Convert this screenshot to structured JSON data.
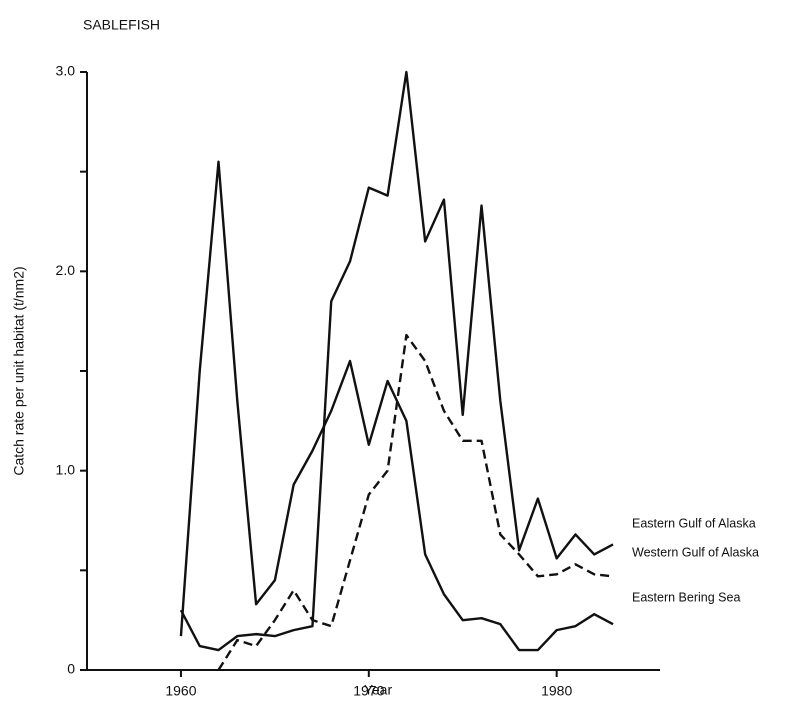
{
  "chart_data": {
    "type": "line",
    "title": "SABLEFISH",
    "x_label": "Year",
    "y_label": "Catch rate per unit habitat  (t/nm2)",
    "x": [
      1960,
      1961,
      1962,
      1963,
      1964,
      1965,
      1966,
      1967,
      1968,
      1969,
      1970,
      1971,
      1972,
      1973,
      1974,
      1975,
      1976,
      1977,
      1978,
      1979,
      1980,
      1981,
      1982,
      1983
    ],
    "series": [
      {
        "name": "Eastern Gulf of Alaska",
        "color": "#111111",
        "dash": false,
        "values": [
          0.3,
          0.12,
          0.1,
          0.17,
          0.18,
          0.17,
          0.2,
          0.22,
          1.85,
          2.05,
          2.42,
          2.38,
          3.0,
          2.15,
          2.36,
          1.28,
          2.33,
          1.35,
          0.6,
          0.86,
          0.56,
          0.68,
          0.58,
          0.63
        ]
      },
      {
        "name": "Western Gulf of Alaska",
        "color": "#111111",
        "dash": true,
        "values": [
          null,
          null,
          0,
          0.15,
          0.12,
          0.25,
          0.4,
          0.25,
          0.22,
          0.55,
          0.88,
          1.0,
          1.68,
          1.55,
          1.3,
          1.15,
          1.15,
          0.68,
          0.58,
          0.47,
          0.48,
          0.53,
          0.48,
          0.47
        ]
      },
      {
        "name": "Eastern Bering Sea",
        "color": "#111111",
        "dash": false,
        "values": [
          0.17,
          1.5,
          2.55,
          1.35,
          0.33,
          0.45,
          0.93,
          1.1,
          1.3,
          1.55,
          1.13,
          1.45,
          1.25,
          0.58,
          0.38,
          0.25,
          0.26,
          0.23,
          0.1,
          0.1,
          0.2,
          0.22,
          0.28,
          0.23
        ]
      }
    ],
    "xlim": [
      1955,
      1985.5
    ],
    "ylim": [
      0,
      3
    ],
    "xticks": [
      1960,
      1970,
      1980
    ],
    "yticks": [
      0,
      {
        "value": 1,
        "label": "1.0"
      },
      {
        "value": 2,
        "label": "2.0"
      },
      {
        "value": 3,
        "label": "3.0"
      }
    ],
    "yminor": [
      0.5,
      1.5,
      2.5
    ]
  }
}
